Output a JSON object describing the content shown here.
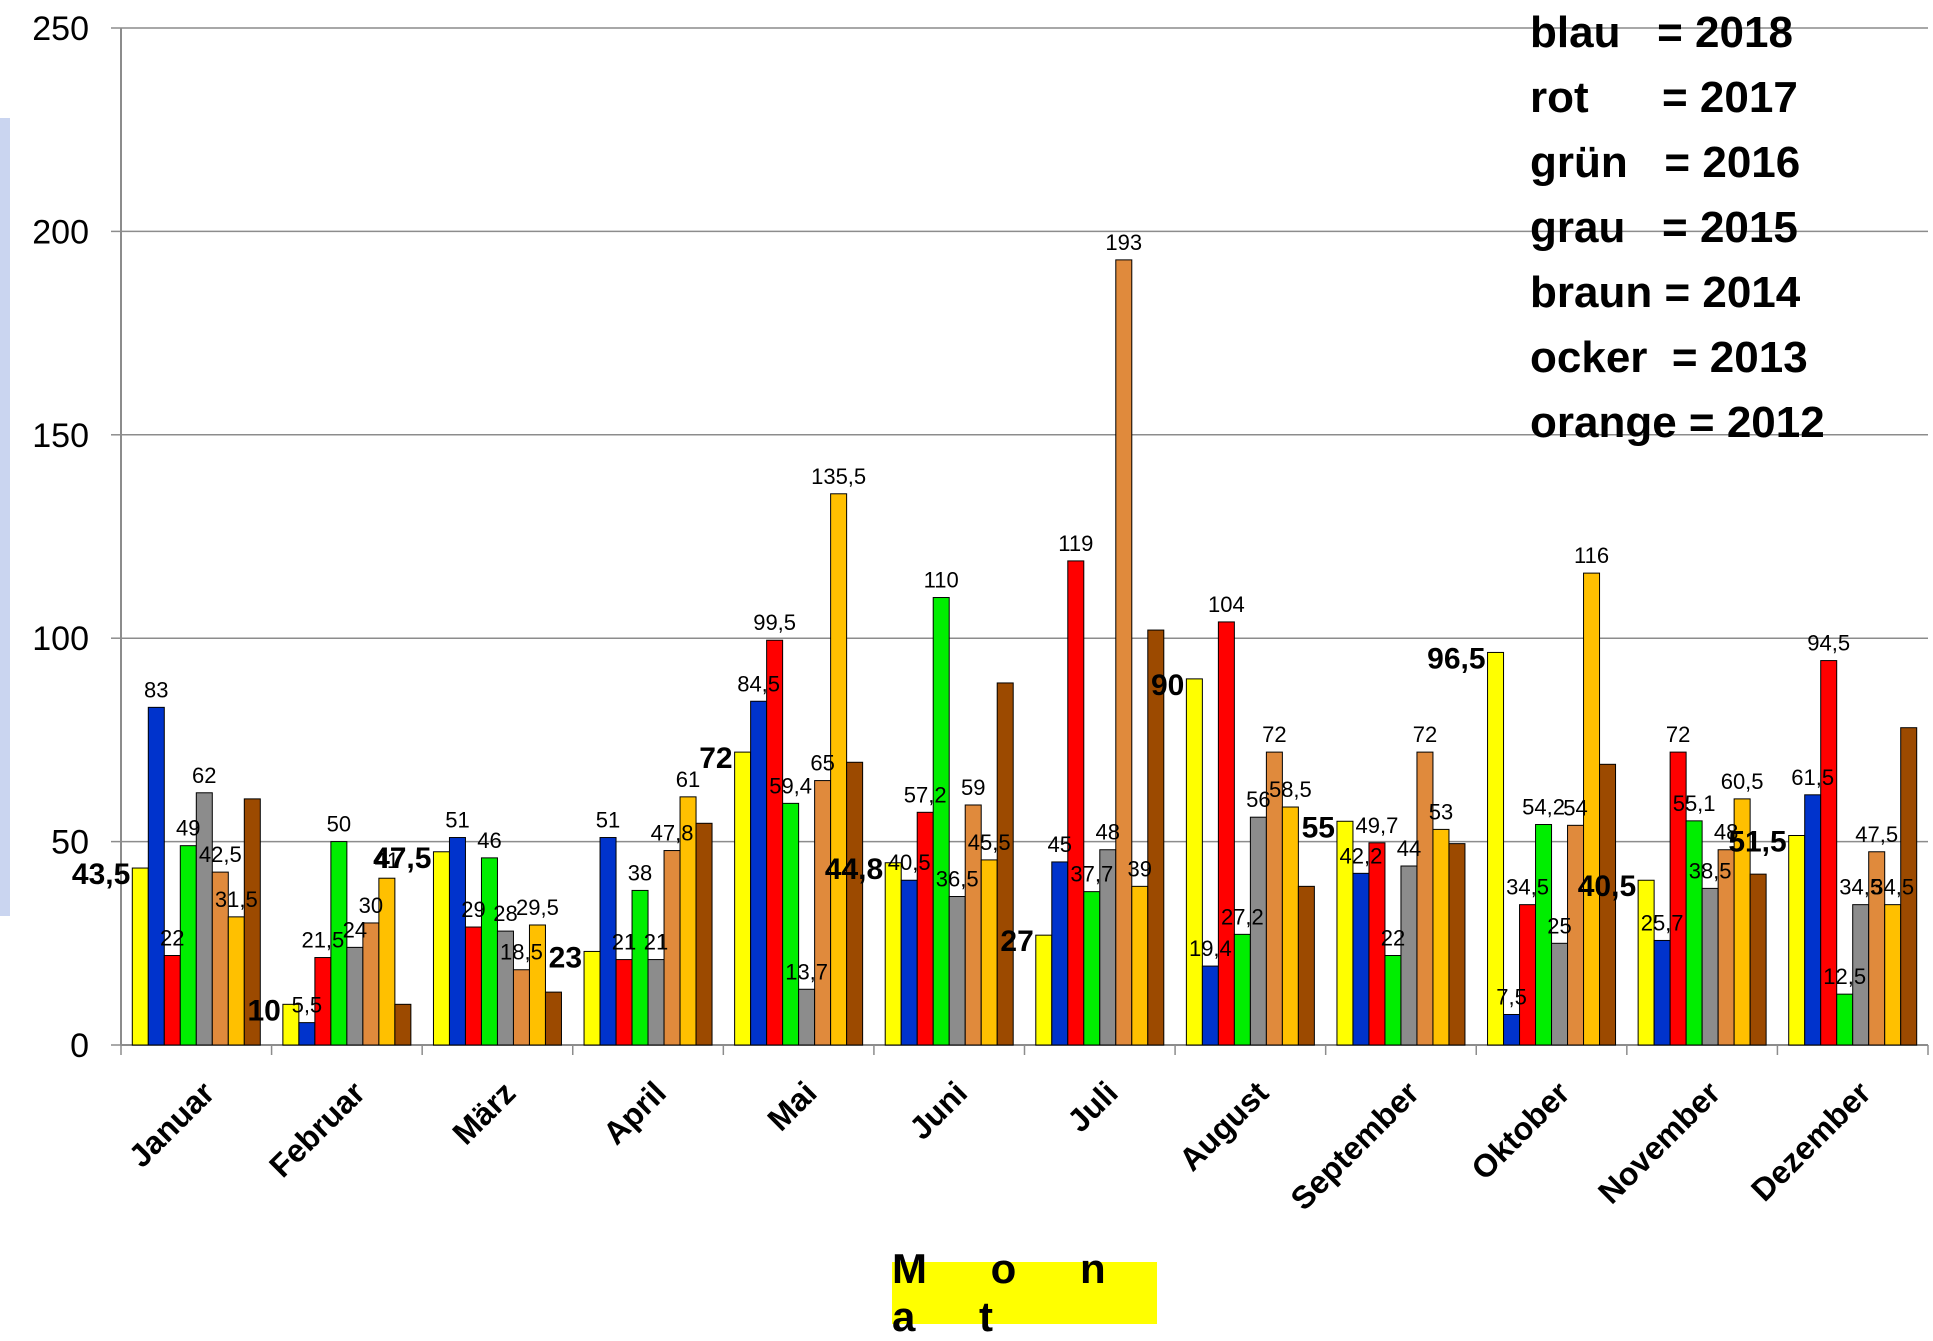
{
  "chart_data": {
    "type": "bar",
    "categories": [
      "Januar",
      "Februar",
      "März",
      "April",
      "Mai",
      "Juni",
      "Juli",
      "August",
      "September",
      "Oktober",
      "November",
      "Dezember"
    ],
    "ylim": [
      0,
      250
    ],
    "yticks": [
      0,
      50,
      100,
      150,
      200,
      250
    ],
    "xlabel": "M o n a t",
    "ylabel": "",
    "grid": true,
    "series": [
      {
        "color": "#ffff00",
        "values": [
          43.5,
          10,
          47.5,
          23,
          72,
          44.8,
          27,
          90,
          55,
          96.5,
          40.5,
          51.5
        ],
        "labels": [
          "43,5",
          "10",
          "47,5",
          "23",
          "72",
          "44,8",
          "27",
          "90",
          "55",
          "96,5",
          "40,5",
          "51,5"
        ],
        "label_style": "bold"
      },
      {
        "color": "#0033cc",
        "values": [
          83,
          5.5,
          51,
          51,
          84.5,
          40.5,
          45,
          19.4,
          42.2,
          7.5,
          25.7,
          61.5
        ],
        "labels": [
          "83",
          "5,5",
          "51",
          "51",
          "84,5",
          "40,5",
          "45",
          "19,4",
          "42,2",
          "7,5",
          "25,7",
          "61,5"
        ]
      },
      {
        "color": "#ff0000",
        "values": [
          22,
          21.5,
          29,
          21,
          99.5,
          57.2,
          119,
          104,
          49.7,
          34.5,
          72,
          94.5
        ],
        "labels": [
          "22",
          "21,5",
          "29",
          "21",
          "99,5",
          "57,2",
          "119",
          "104",
          "49,7",
          "34,5",
          "72",
          "94,5"
        ]
      },
      {
        "color": "#00ee00",
        "values": [
          49,
          50,
          46,
          38,
          59.4,
          110,
          37.7,
          27.2,
          22,
          54.2,
          55.1,
          12.5
        ],
        "labels": [
          "49",
          "50",
          "46",
          "38",
          "59,4",
          "110",
          "37,7",
          "27,2",
          "22",
          "54,2",
          "55,1",
          "12,5"
        ]
      },
      {
        "color": "#8c8c8c",
        "values": [
          62,
          24,
          28,
          21,
          13.7,
          36.5,
          48,
          56,
          44,
          25,
          38.5,
          34.5
        ],
        "labels": [
          "62",
          "24",
          "28",
          "21",
          "13,7",
          "36,5",
          "48",
          "56",
          "44",
          "25",
          "38,5",
          "34,5"
        ]
      },
      {
        "color": "#e08a3c",
        "values": [
          42.5,
          30,
          18.5,
          47.8,
          65,
          59,
          193,
          72,
          72,
          54,
          48,
          47.5
        ],
        "labels": [
          "42,5",
          "30",
          "18,5",
          "47,8",
          "65",
          "59",
          "193",
          "72",
          "72",
          "54",
          "48",
          "47,5"
        ]
      },
      {
        "color": "#ffc000",
        "values": [
          31.5,
          41,
          29.5,
          61,
          135.5,
          45.5,
          39,
          58.5,
          53,
          116,
          60.5,
          34.5
        ],
        "labels": [
          "31,5",
          "41",
          "29,5",
          "61",
          "135,5",
          "45,5",
          "39",
          "58,5",
          "53",
          "116",
          "60,5",
          "34,5"
        ]
      },
      {
        "color": "#9c4a00",
        "values": [
          60.5,
          10,
          13,
          54.5,
          69.5,
          89,
          102,
          39,
          49.5,
          69,
          42,
          78
        ],
        "labels": [
          null,
          null,
          null,
          null,
          null,
          null,
          null,
          null,
          null,
          null,
          null,
          null
        ]
      }
    ],
    "legend": [
      "blau   = 2018",
      "rot      = 2017",
      "grün   = 2016",
      "grau   = 2015",
      "braun = 2014",
      "ocker  = 2013",
      "orange = 2012"
    ],
    "legend_position": "top-right"
  }
}
